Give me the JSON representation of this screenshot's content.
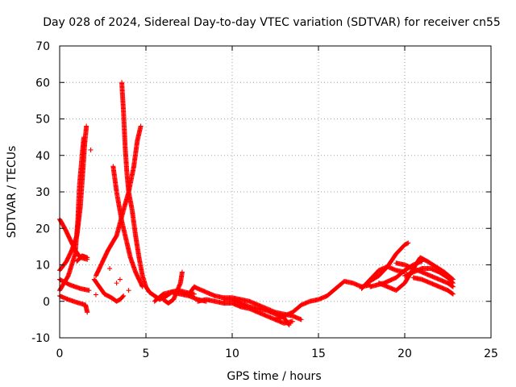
{
  "chart_data": {
    "type": "scatter",
    "title": "Day 028 of 2024, Sidereal Day-to-day VTEC variation (SDTVAR) for receiver cn55",
    "xlabel": "GPS time / hours",
    "ylabel": "SDTVAR / TECUs",
    "xlim": [
      0,
      25
    ],
    "ylim": [
      -10,
      70
    ],
    "xticks": [
      "0",
      "5",
      "10",
      "15",
      "20",
      "25"
    ],
    "yticks": [
      "-10",
      "0",
      "10",
      "20",
      "30",
      "40",
      "50",
      "60",
      "70"
    ],
    "grid": true,
    "marker": "plus",
    "series": [
      {
        "name": "SDTVAR",
        "color": "#ff0000",
        "tracks": [
          [
            [
              0.0,
              22.5
            ],
            [
              0.3,
              20
            ],
            [
              0.6,
              17
            ],
            [
              0.9,
              14
            ],
            [
              1.2,
              12
            ],
            [
              1.6,
              11.5
            ]
          ],
          [
            [
              0.0,
              8.5
            ],
            [
              0.4,
              11
            ],
            [
              0.7,
              14
            ],
            [
              1.0,
              18
            ],
            [
              1.2,
              26
            ],
            [
              1.35,
              36
            ],
            [
              1.45,
              43
            ],
            [
              1.55,
              48
            ]
          ],
          [
            [
              0.0,
              3
            ],
            [
              0.5,
              7
            ],
            [
              0.9,
              13
            ],
            [
              1.05,
              22
            ],
            [
              1.15,
              32
            ],
            [
              1.3,
              40
            ],
            [
              1.4,
              45
            ]
          ],
          [
            [
              0.0,
              6
            ],
            [
              0.6,
              4.5
            ],
            [
              1.2,
              3.5
            ],
            [
              1.7,
              3
            ]
          ],
          [
            [
              0.0,
              1.5
            ],
            [
              0.5,
              0.5
            ],
            [
              1.0,
              -0.3
            ],
            [
              1.5,
              -1
            ],
            [
              1.6,
              -3
            ]
          ],
          [
            [
              1.0,
              11
            ],
            [
              1.3,
              12.5
            ],
            [
              1.6,
              12
            ]
          ],
          [
            [
              2.0,
              6
            ],
            [
              2.3,
              4
            ],
            [
              2.6,
              2
            ],
            [
              3.0,
              1
            ],
            [
              3.3,
              0
            ],
            [
              3.5,
              0.5
            ],
            [
              3.7,
              1.5
            ]
          ],
          [
            [
              2.1,
              7
            ],
            [
              2.4,
              10
            ],
            [
              2.8,
              14
            ],
            [
              3.3,
              18
            ],
            [
              3.7,
              25
            ],
            [
              4.0,
              30
            ],
            [
              4.3,
              37
            ],
            [
              4.5,
              44
            ],
            [
              4.7,
              48
            ]
          ],
          [
            [
              3.1,
              37
            ],
            [
              3.3,
              30
            ],
            [
              3.6,
              22
            ],
            [
              3.9,
              16
            ],
            [
              4.1,
              12
            ],
            [
              4.4,
              8
            ],
            [
              4.8,
              4
            ]
          ],
          [
            [
              3.6,
              60
            ],
            [
              3.7,
              52
            ],
            [
              3.8,
              42
            ],
            [
              3.9,
              35
            ],
            [
              4.0,
              30
            ],
            [
              4.2,
              25
            ],
            [
              4.4,
              18
            ],
            [
              4.6,
              12
            ],
            [
              4.8,
              7
            ],
            [
              5.0,
              4
            ],
            [
              5.2,
              2.5
            ],
            [
              5.5,
              1.5
            ],
            [
              5.8,
              0.5
            ],
            [
              6.2,
              1.5
            ],
            [
              6.5,
              2.5
            ],
            [
              7.0,
              2
            ],
            [
              7.5,
              1.5
            ],
            [
              8.0,
              0.5
            ],
            [
              8.5,
              0
            ]
          ],
          [
            [
              5.5,
              0
            ],
            [
              6.0,
              2
            ],
            [
              6.4,
              2.5
            ],
            [
              6.9,
              3
            ],
            [
              7.3,
              2.5
            ],
            [
              7.8,
              2
            ]
          ],
          [
            [
              6.0,
              0.5
            ],
            [
              6.3,
              -0.5
            ],
            [
              6.6,
              0.5
            ],
            [
              7.0,
              5
            ],
            [
              7.1,
              8
            ]
          ],
          [
            [
              7.5,
              2
            ],
            [
              7.8,
              4
            ],
            [
              8.0,
              3.5
            ],
            [
              8.5,
              2.5
            ],
            [
              9.0,
              1.5
            ],
            [
              9.5,
              1
            ],
            [
              10.0,
              1
            ],
            [
              10.5,
              0.5
            ],
            [
              11.0,
              0
            ],
            [
              11.5,
              -1
            ],
            [
              12.0,
              -2
            ],
            [
              12.5,
              -3
            ],
            [
              13.0,
              -3.5
            ],
            [
              13.5,
              -4
            ],
            [
              14.0,
              -5
            ]
          ],
          [
            [
              8.0,
              0
            ],
            [
              8.5,
              0.5
            ],
            [
              9.0,
              0
            ],
            [
              9.5,
              -0.5
            ],
            [
              10.0,
              -0.5
            ],
            [
              10.5,
              -1.5
            ],
            [
              11.0,
              -2
            ],
            [
              11.5,
              -3
            ],
            [
              12.0,
              -4
            ],
            [
              12.5,
              -5
            ],
            [
              13.0,
              -6
            ],
            [
              13.5,
              -5.5
            ]
          ],
          [
            [
              9.5,
              0.5
            ],
            [
              10.0,
              0.5
            ],
            [
              10.5,
              -0.5
            ],
            [
              11.0,
              -1.5
            ],
            [
              11.5,
              -2
            ],
            [
              12.0,
              -2.5
            ],
            [
              12.5,
              -3.5
            ],
            [
              13.0,
              -4.5
            ],
            [
              13.3,
              -6.5
            ]
          ],
          [
            [
              12.5,
              -5
            ],
            [
              13.0,
              -4
            ],
            [
              13.5,
              -3
            ],
            [
              14.0,
              -1
            ],
            [
              14.5,
              0
            ],
            [
              15.0,
              0.5
            ],
            [
              15.5,
              1.5
            ],
            [
              16.0,
              3.5
            ],
            [
              16.5,
              5.5
            ],
            [
              17.0,
              5
            ],
            [
              17.5,
              4
            ],
            [
              18.0,
              4.5
            ]
          ],
          [
            [
              17.5,
              3.5
            ],
            [
              18.0,
              6
            ],
            [
              18.5,
              8.5
            ],
            [
              19.0,
              9.5
            ],
            [
              19.5,
              8.5
            ],
            [
              20.0,
              8
            ]
          ],
          [
            [
              17.8,
              5
            ],
            [
              18.5,
              7
            ],
            [
              19.0,
              9.5
            ],
            [
              19.5,
              13
            ],
            [
              20.0,
              15.5
            ],
            [
              20.2,
              16
            ]
          ],
          [
            [
              18.0,
              4
            ],
            [
              18.8,
              5
            ],
            [
              19.5,
              6.5
            ],
            [
              20.0,
              8.5
            ],
            [
              20.5,
              10
            ],
            [
              21.0,
              11
            ]
          ],
          [
            [
              18.5,
              5
            ],
            [
              19.0,
              4
            ],
            [
              19.5,
              3
            ],
            [
              20.0,
              5
            ],
            [
              20.5,
              9
            ],
            [
              20.9,
              12
            ],
            [
              21.3,
              11
            ],
            [
              21.8,
              9.5
            ],
            [
              22.3,
              8
            ],
            [
              22.8,
              6
            ]
          ],
          [
            [
              19.5,
              10.5
            ],
            [
              20.0,
              10
            ],
            [
              20.5,
              9
            ],
            [
              21.0,
              8
            ],
            [
              21.5,
              7
            ],
            [
              22.0,
              6
            ],
            [
              22.5,
              5
            ],
            [
              22.8,
              4
            ]
          ],
          [
            [
              20.0,
              7
            ],
            [
              20.5,
              8
            ],
            [
              21.0,
              9
            ],
            [
              21.5,
              9
            ],
            [
              22.0,
              8
            ],
            [
              22.5,
              6.5
            ],
            [
              22.8,
              5
            ]
          ],
          [
            [
              20.5,
              6.5
            ],
            [
              21.0,
              6
            ],
            [
              21.5,
              5
            ],
            [
              22.0,
              4
            ],
            [
              22.5,
              3
            ],
            [
              22.8,
              2
            ]
          ]
        ],
        "points": [
          [
            1.8,
            41.5
          ],
          [
            2.1,
            1.8
          ],
          [
            3.3,
            5
          ],
          [
            3.5,
            6
          ],
          [
            2.9,
            9
          ],
          [
            4.0,
            3
          ]
        ]
      }
    ]
  }
}
